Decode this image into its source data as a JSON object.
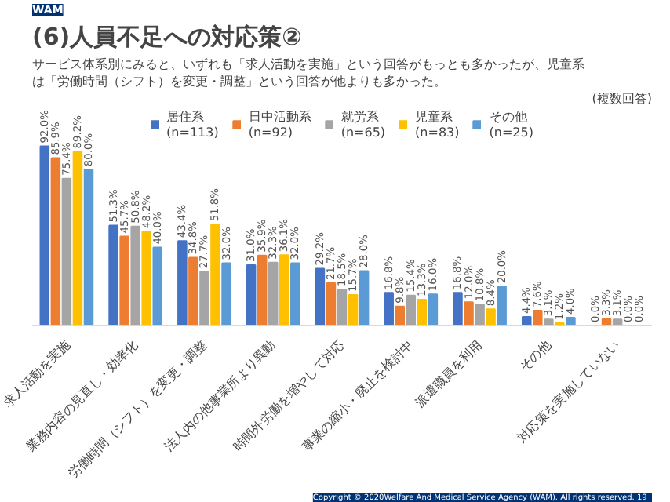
{
  "chart_data": {
    "type": "bar",
    "title": "(6)人員不足への対応策②",
    "subtitle": "サービス体系別にみると、いずれも「求人活動を実施」という回答がもっとも多かったが、児童系は「労働時間（シフト）を変更・調整」という回答が他よりも多かった。",
    "categories": [
      "求人活動を実施",
      "業務内容の見直し・効率化",
      "労働時間（シフト）を変更・調整",
      "法人内の他事業所より異動",
      "時間外労働を増やして対応",
      "事業の縮小・廃止を検討中",
      "派遣職員を利用",
      "その他",
      "対応策を実施していない"
    ],
    "series": [
      {
        "name": "居住系\n(n=113)",
        "color": "#4472c4",
        "values": [
          92.0,
          51.3,
          43.4,
          31.0,
          29.2,
          16.8,
          16.8,
          4.4,
          0.0
        ],
        "value_labels": [
          "92.0%",
          "51.3%",
          "43.4%",
          "31.0%",
          "29.2%",
          "16.8%",
          "16.8%",
          "4.4%",
          "0.0%"
        ]
      },
      {
        "name": "日中活動系\n(n=92)",
        "color": "#ed7d31",
        "values": [
          85.9,
          45.7,
          34.8,
          35.9,
          21.7,
          9.8,
          12.0,
          7.6,
          3.3
        ],
        "value_labels": [
          "85.9%",
          "45.7%",
          "34.8%",
          "35.9%",
          "21.7%",
          "9.8%",
          "12.0%",
          "7.6%",
          "3.3%"
        ]
      },
      {
        "name": "就労系\n(n=65)",
        "color": "#a5a5a5",
        "values": [
          75.4,
          50.8,
          27.7,
          32.3,
          18.5,
          15.4,
          10.8,
          3.1,
          3.1
        ],
        "value_labels": [
          "75.4%",
          "50.8%",
          "27.7%",
          "32.3%",
          "18.5%",
          "15.4%",
          "10.8%",
          "3.1%",
          "3.1%"
        ]
      },
      {
        "name": "児童系\n(n=83)",
        "color": "#ffc000",
        "values": [
          89.2,
          48.2,
          51.8,
          36.1,
          15.7,
          13.3,
          8.4,
          1.2,
          0.0
        ],
        "value_labels": [
          "89.2%",
          "48.2%",
          "51.8%",
          "36.1%",
          "15.7%",
          "13.3%",
          "8.4%",
          "1.2%",
          "0.0%"
        ]
      },
      {
        "name": "その他\n(n=25)",
        "color": "#5b9bd5",
        "values": [
          80.0,
          40.0,
          32.0,
          32.0,
          28.0,
          16.0,
          20.0,
          4.0,
          0.0
        ],
        "value_labels": [
          "80.0%",
          "40.0%",
          "32.0%",
          "32.0%",
          "28.0%",
          "16.0%",
          "20.0%",
          "4.0%",
          "0.0%"
        ]
      }
    ],
    "tick_labels": "x",
    "legend": "top",
    "grid": false,
    "annotations": [
      "(複数回答)",
      "WAM",
      "Copyright © 2020Welfare And Medical Service Agency (WAM). All rights reserved.",
      "19"
    ]
  }
}
